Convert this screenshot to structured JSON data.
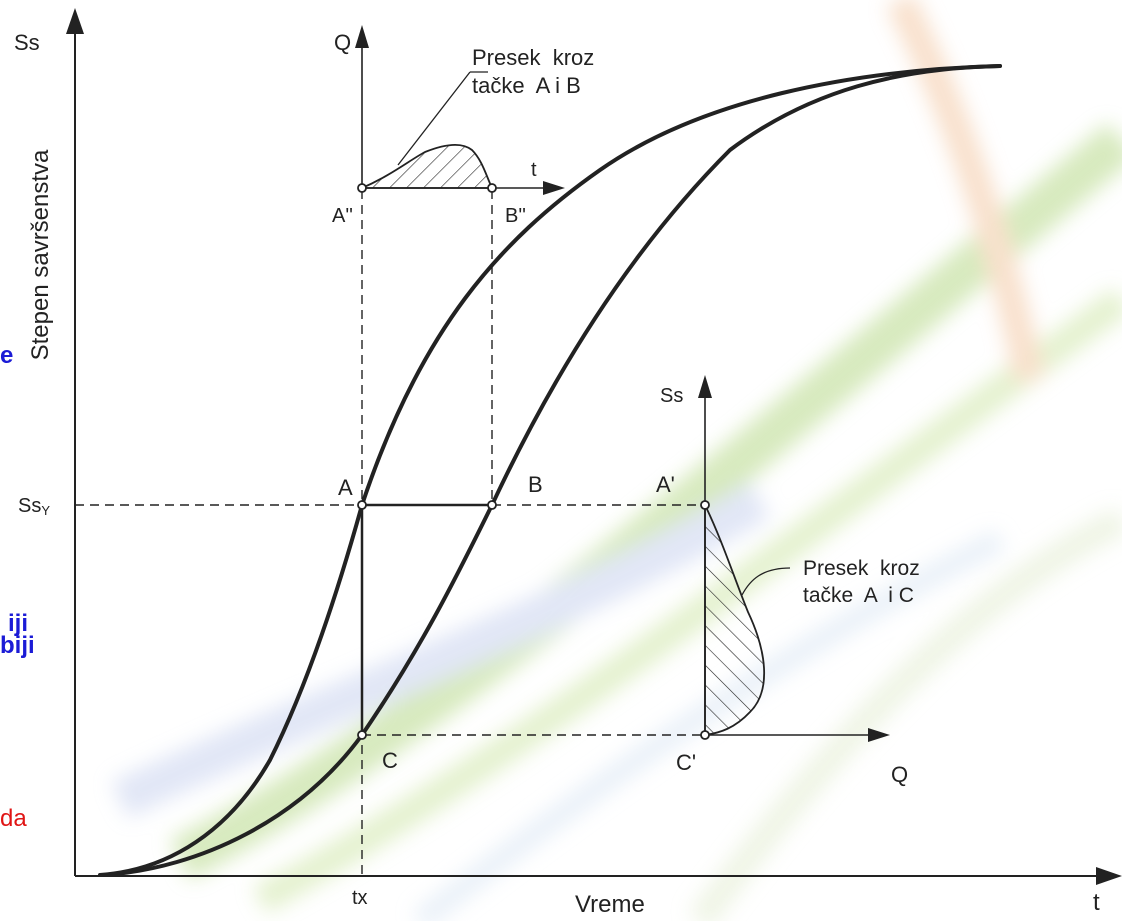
{
  "axes": {
    "y_label": "Stepen savršenstva",
    "y_symbol": "Ss",
    "x_label": "Vreme",
    "x_symbol": "t",
    "y_level": "Ss",
    "y_level_sub": "Y",
    "x_tick": "tx"
  },
  "points": {
    "a": "A",
    "b": "B",
    "c": "C",
    "a_prime": "A'",
    "c_prime": "C'",
    "a_dprime": "A''",
    "b_dprime": "B''"
  },
  "inset_top": {
    "y_axis": "Q",
    "x_axis": "t",
    "note_line1": "Presek  kroz",
    "note_line2": "tačke  A i B"
  },
  "inset_right": {
    "y_axis": "Ss",
    "x_axis": "Q",
    "note_line1": "Presek  kroz",
    "note_line2": "tačke  A  i C"
  },
  "side_text": {
    "fragment_e": "e",
    "fragment_iji": "iji",
    "fragment_biji": "biji",
    "fragment_da": "da"
  },
  "colors": {
    "background": "#ffffff",
    "line": "#222222",
    "fragment_blue": "#1b1bd6",
    "fragment_red": "#e01515"
  }
}
